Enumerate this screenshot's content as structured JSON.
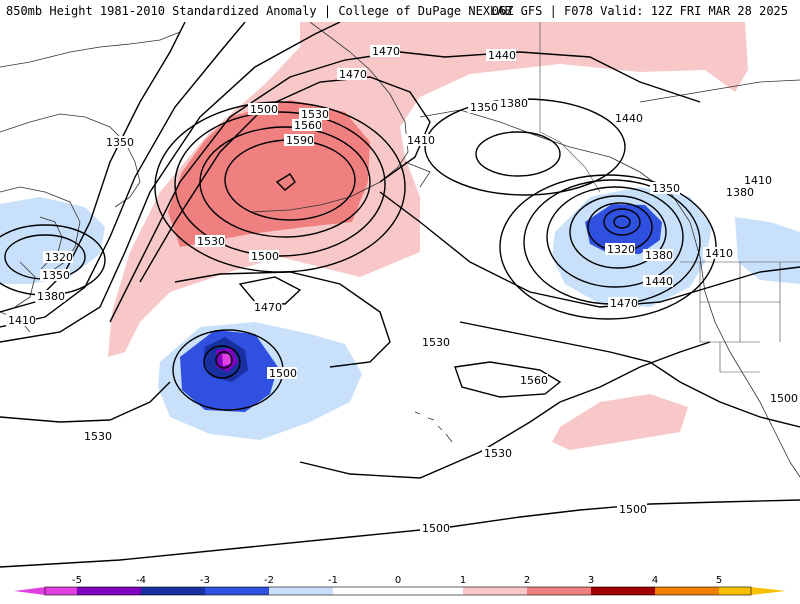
{
  "header": {
    "title_left": "850mb Height 1981-2010 Standardized Anomaly | College of DuPage NEXLAB",
    "title_right": "06Z GFS | F078 Valid: 12Z FRI MAR 28 2025"
  },
  "contour_labels": [
    {
      "text": "1470"
    },
    {
      "text": "1440"
    },
    {
      "text": "1470"
    },
    {
      "text": "1350"
    },
    {
      "text": "1380"
    },
    {
      "text": "1440"
    },
    {
      "text": "1500"
    },
    {
      "text": "1530"
    },
    {
      "text": "1560"
    },
    {
      "text": "1590"
    },
    {
      "text": "1410"
    },
    {
      "text": "1350"
    },
    {
      "text": "1410"
    },
    {
      "text": "1380"
    },
    {
      "text": "1350"
    },
    {
      "text": "1530"
    },
    {
      "text": "1320"
    },
    {
      "text": "1500"
    },
    {
      "text": "1380"
    },
    {
      "text": "1410"
    },
    {
      "text": "1320"
    },
    {
      "text": "1350"
    },
    {
      "text": "1380"
    },
    {
      "text": "1410"
    },
    {
      "text": "1440"
    },
    {
      "text": "1470"
    },
    {
      "text": "1470"
    },
    {
      "text": "1530"
    },
    {
      "text": "1500"
    },
    {
      "text": "1560"
    },
    {
      "text": "1530"
    },
    {
      "text": "1530"
    },
    {
      "text": "1500"
    },
    {
      "text": "1500"
    },
    {
      "text": "1500"
    }
  ],
  "colorbar": {
    "ticks": [
      "-5",
      "-4",
      "-3",
      "-2",
      "-1",
      "0",
      "1",
      "2",
      "3",
      "4",
      "5"
    ],
    "colors": [
      "#e040e0",
      "#8000c0",
      "#1830a0",
      "#3050e0",
      "#6a9af0",
      "#c8e0fa",
      "#ffffff",
      "#f8c8c8",
      "#f08080",
      "#d02020",
      "#a00000",
      "#f08000",
      "#f8c000"
    ]
  },
  "anomaly_colors": {
    "neg_light": "#c8e0fa",
    "neg_mid": "#6a9af0",
    "neg_strong": "#3050e0",
    "neg_deep": "#1830a0",
    "neg_extreme": "#8000c0",
    "neg_max": "#e040e0",
    "pos_light": "#f8c8c8",
    "pos_mid": "#f08080"
  }
}
